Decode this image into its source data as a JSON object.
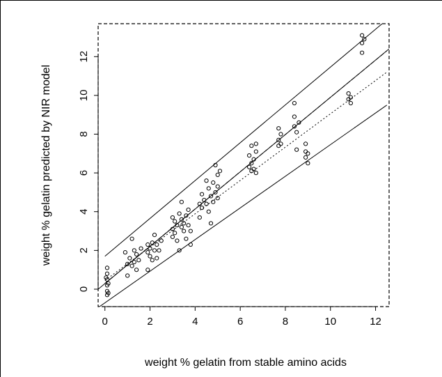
{
  "chart_data": {
    "type": "scatter",
    "title": "",
    "xlabel": "weight % gelatin from stable amino acids",
    "ylabel": "weight % gelatin predicted by NIR model",
    "xlim": [
      -0.3,
      12.6
    ],
    "ylim": [
      -0.9,
      13.7
    ],
    "xticks": [
      "0",
      "2",
      "4",
      "6",
      "8",
      "10",
      "12"
    ],
    "xtick_values": [
      0,
      2,
      4,
      6,
      8,
      10,
      12
    ],
    "yticks": [
      "0",
      "2",
      "4",
      "6",
      "8",
      "10",
      "12"
    ],
    "ytick_values": [
      0,
      2,
      4,
      6,
      8,
      10,
      12
    ],
    "grid": false,
    "legend": "none",
    "colors": {
      "ink": "#000000",
      "background": "#ffffff"
    },
    "points": [
      [
        0.1,
        1.1
      ],
      [
        0.1,
        0.8
      ],
      [
        0.1,
        0.5
      ],
      [
        0.1,
        0.2
      ],
      [
        0.1,
        -0.1
      ],
      [
        0.1,
        -0.3
      ],
      [
        0.15,
        0.3
      ],
      [
        0.15,
        -0.2
      ],
      [
        0.05,
        0.6
      ],
      [
        0.9,
        1.9
      ],
      [
        1.0,
        1.3
      ],
      [
        1.0,
        0.7
      ],
      [
        1.1,
        1.6
      ],
      [
        1.2,
        1.2
      ],
      [
        1.2,
        2.6
      ],
      [
        1.3,
        2.0
      ],
      [
        1.3,
        1.4
      ],
      [
        1.4,
        1.0
      ],
      [
        1.4,
        1.8
      ],
      [
        1.5,
        1.5
      ],
      [
        1.6,
        2.1
      ],
      [
        1.9,
        2.3
      ],
      [
        1.9,
        1.9
      ],
      [
        1.9,
        1.0
      ],
      [
        2.0,
        2.1
      ],
      [
        2.0,
        1.7
      ],
      [
        2.1,
        2.4
      ],
      [
        2.1,
        1.5
      ],
      [
        2.2,
        2.8
      ],
      [
        2.2,
        2.0
      ],
      [
        2.3,
        1.6
      ],
      [
        2.3,
        2.3
      ],
      [
        2.4,
        2.0
      ],
      [
        2.5,
        2.5
      ],
      [
        3.0,
        3.7
      ],
      [
        3.0,
        3.1
      ],
      [
        3.0,
        2.7
      ],
      [
        3.1,
        3.5
      ],
      [
        3.1,
        2.9
      ],
      [
        3.2,
        3.3
      ],
      [
        3.2,
        2.5
      ],
      [
        3.3,
        3.9
      ],
      [
        3.3,
        2.0
      ],
      [
        3.4,
        3.6
      ],
      [
        3.4,
        3.2
      ],
      [
        3.4,
        4.5
      ],
      [
        3.5,
        3.4
      ],
      [
        3.5,
        3.0
      ],
      [
        3.6,
        3.8
      ],
      [
        3.6,
        2.6
      ],
      [
        3.7,
        3.3
      ],
      [
        3.7,
        4.1
      ],
      [
        3.8,
        3.0
      ],
      [
        3.8,
        2.3
      ],
      [
        4.2,
        4.4
      ],
      [
        4.2,
        3.7
      ],
      [
        4.3,
        4.9
      ],
      [
        4.3,
        4.2
      ],
      [
        4.4,
        4.6
      ],
      [
        4.5,
        5.6
      ],
      [
        4.5,
        4.4
      ],
      [
        4.6,
        5.2
      ],
      [
        4.6,
        4.0
      ],
      [
        4.7,
        4.8
      ],
      [
        4.7,
        3.4
      ],
      [
        4.8,
        5.5
      ],
      [
        4.8,
        4.5
      ],
      [
        4.9,
        6.4
      ],
      [
        4.9,
        5.0
      ],
      [
        5.0,
        5.9
      ],
      [
        5.0,
        5.3
      ],
      [
        5.0,
        4.7
      ],
      [
        5.1,
        6.1
      ],
      [
        6.4,
        6.9
      ],
      [
        6.4,
        6.3
      ],
      [
        6.5,
        7.4
      ],
      [
        6.5,
        6.5
      ],
      [
        6.5,
        6.1
      ],
      [
        6.6,
        6.7
      ],
      [
        6.6,
        6.2
      ],
      [
        6.7,
        7.1
      ],
      [
        6.7,
        6.0
      ],
      [
        6.7,
        7.5
      ],
      [
        7.7,
        8.3
      ],
      [
        7.7,
        7.7
      ],
      [
        7.7,
        7.4
      ],
      [
        7.8,
        8.0
      ],
      [
        7.8,
        7.5
      ],
      [
        8.4,
        9.6
      ],
      [
        8.4,
        8.9
      ],
      [
        8.4,
        8.4
      ],
      [
        8.5,
        8.1
      ],
      [
        8.5,
        7.2
      ],
      [
        8.6,
        8.6
      ],
      [
        8.9,
        7.5
      ],
      [
        8.9,
        7.1
      ],
      [
        8.9,
        6.8
      ],
      [
        9.0,
        6.5
      ],
      [
        9.0,
        7.0
      ],
      [
        10.8,
        10.1
      ],
      [
        10.8,
        9.8
      ],
      [
        10.9,
        9.6
      ],
      [
        10.9,
        9.9
      ],
      [
        11.4,
        13.1
      ],
      [
        11.4,
        12.7
      ],
      [
        11.4,
        12.2
      ],
      [
        11.5,
        12.9
      ]
    ],
    "lines": [
      {
        "style": "solid",
        "x1": 0,
        "y1": 1.7,
        "x2": 12.6,
        "y2": 14.0
      },
      {
        "style": "solid",
        "x1": -0.3,
        "y1": 0.0,
        "x2": 12.6,
        "y2": 12.4
      },
      {
        "style": "solid",
        "x1": -0.3,
        "y1": -0.95,
        "x2": 12.5,
        "y2": 9.5
      },
      {
        "style": "dashed",
        "x1": 0,
        "y1": 0.3,
        "x2": 12.5,
        "y2": 12.3
      },
      {
        "style": "dotted",
        "x1": 0,
        "y1": 0.45,
        "x2": 12.5,
        "y2": 11.2
      }
    ]
  }
}
